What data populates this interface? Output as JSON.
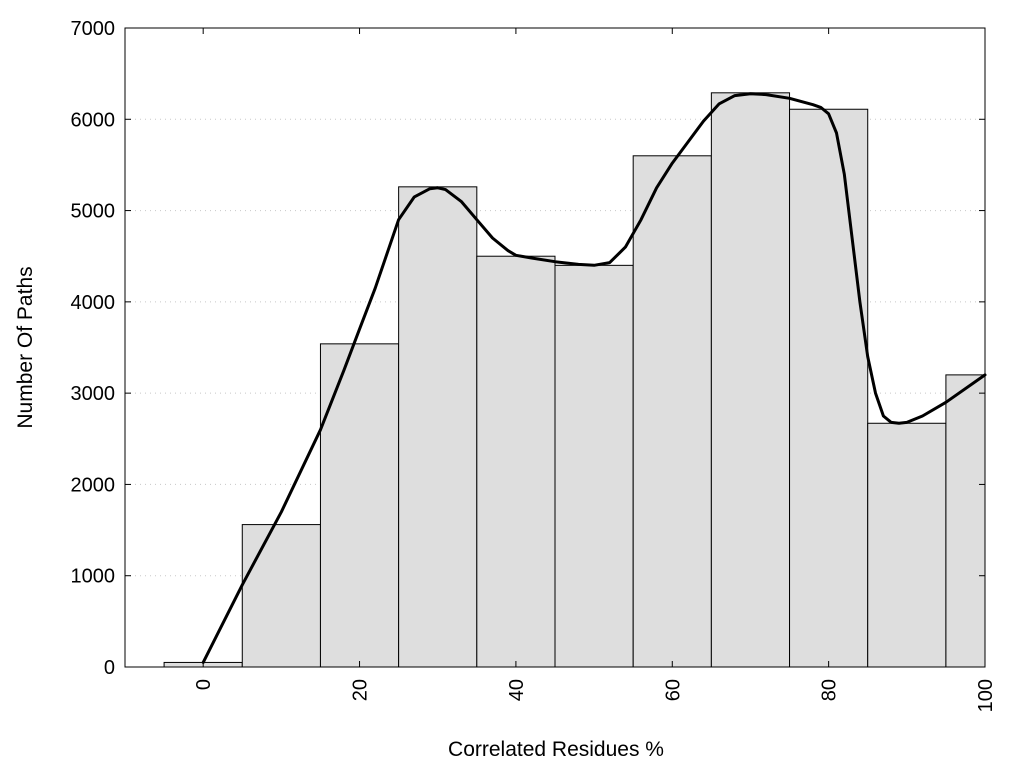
{
  "chart_data": {
    "type": "bar",
    "title": "",
    "xlabel": "Correlated Residues %",
    "ylabel": "Number Of Paths",
    "xlim": [
      -10,
      100
    ],
    "ylim": [
      0,
      7000
    ],
    "grid": true,
    "x_ticks": [
      "0",
      "20",
      "40",
      "60",
      "80",
      "100"
    ],
    "y_ticks": [
      "0",
      "1000",
      "2000",
      "3000",
      "4000",
      "5000",
      "6000",
      "7000"
    ],
    "bin_width": 10,
    "bins": [
      {
        "center": 0,
        "value": 50
      },
      {
        "center": 10,
        "value": 1560
      },
      {
        "center": 20,
        "value": 3540
      },
      {
        "center": 30,
        "value": 5260
      },
      {
        "center": 40,
        "value": 4500
      },
      {
        "center": 50,
        "value": 4400
      },
      {
        "center": 60,
        "value": 5600
      },
      {
        "center": 70,
        "value": 6290
      },
      {
        "center": 80,
        "value": 6110
      },
      {
        "center": 90,
        "value": 2670
      },
      {
        "center": 100,
        "value": 3200
      }
    ],
    "smooth_curve": {
      "x": [
        0,
        5,
        10,
        15,
        18,
        20,
        22,
        25,
        27,
        29,
        30,
        31,
        33,
        35,
        37,
        39,
        40,
        42,
        45,
        48,
        50,
        52,
        54,
        56,
        58,
        60,
        62,
        64,
        66,
        68,
        70,
        72,
        75,
        78,
        79,
        80,
        81,
        82,
        83,
        84,
        85,
        86,
        87,
        88,
        89,
        90,
        92,
        95,
        100
      ],
      "y": [
        50,
        900,
        1700,
        2600,
        3250,
        3700,
        4150,
        4900,
        5150,
        5240,
        5250,
        5230,
        5100,
        4900,
        4700,
        4560,
        4510,
        4480,
        4440,
        4410,
        4400,
        4430,
        4600,
        4900,
        5250,
        5520,
        5750,
        5980,
        6170,
        6260,
        6280,
        6270,
        6230,
        6160,
        6130,
        6060,
        5850,
        5400,
        4700,
        4000,
        3400,
        3000,
        2750,
        2680,
        2670,
        2680,
        2750,
        2900,
        3200
      ]
    }
  }
}
